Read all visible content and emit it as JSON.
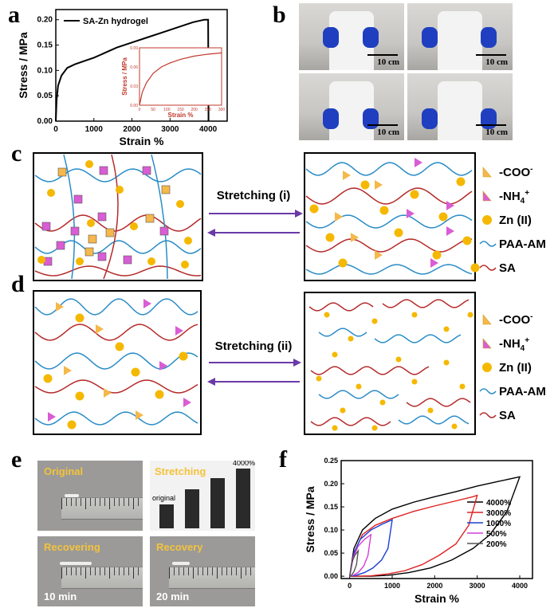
{
  "panels": {
    "a": "a",
    "b": "b",
    "c": "c",
    "d": "d",
    "e": "e",
    "f": "f"
  },
  "panel_b": {
    "scale_labels": [
      "10 cm",
      "10 cm",
      "10 cm",
      "10 cm"
    ]
  },
  "scheme": {
    "c_label": "Stretching (i)",
    "d_label": "Stretching (ii)",
    "legend": [
      {
        "symbol": "triangle",
        "color": "#f5b84a",
        "label": "-COO",
        "sup": "-"
      },
      {
        "symbol": "triangle",
        "color": "#d95dd4",
        "label": "-NH",
        "sub": "4",
        "sup": "+"
      },
      {
        "symbol": "circle",
        "color": "#f5b800",
        "label": "Zn (II)"
      },
      {
        "symbol": "line",
        "color": "#2a8cc6",
        "label": "PAA-AM"
      },
      {
        "symbol": "line",
        "color": "#b52a2a",
        "label": "SA"
      }
    ]
  },
  "panel_e": {
    "original": "Original",
    "stretching": "Stretching",
    "recovering": "Recovering",
    "recovery": "Recovery",
    "t1": "10 min",
    "t2": "20 min",
    "tube_original": "original",
    "tube_max": "4000%"
  },
  "chart_data": [
    {
      "type": "line",
      "panel": "a",
      "xlabel": "Strain %",
      "ylabel": "Stress / MPa",
      "xlim": [
        0,
        4500
      ],
      "ylim": [
        0,
        0.22
      ],
      "xticks": [
        0,
        1000,
        2000,
        3000,
        4000
      ],
      "yticks": [
        0.0,
        0.05,
        0.1,
        0.15,
        0.2
      ],
      "legend": "top-left",
      "series": [
        {
          "name": "SA-Zn hydrogel",
          "color": "#000000",
          "x": [
            0,
            20,
            60,
            150,
            300,
            500,
            800,
            1000,
            1300,
            1600,
            2000,
            2400,
            2800,
            3200,
            3600,
            3900,
            4000,
            4010
          ],
          "y": [
            0,
            0.04,
            0.07,
            0.09,
            0.105,
            0.112,
            0.12,
            0.125,
            0.135,
            0.145,
            0.155,
            0.165,
            0.175,
            0.185,
            0.195,
            0.2,
            0.2,
            0.0
          ]
        }
      ],
      "inset": {
        "xlabel": "Strain %",
        "ylabel": "Stress / MPa",
        "xlim": [
          0,
          300
        ],
        "ylim": [
          0,
          0.09
        ],
        "xticks": [
          0,
          50,
          100,
          150,
          200,
          250,
          300
        ],
        "yticks": [
          0.0,
          0.03,
          0.06,
          0.09
        ],
        "color": "#c0392b",
        "x": [
          0,
          10,
          25,
          50,
          80,
          110,
          150,
          200,
          250,
          300
        ],
        "y": [
          0,
          0.02,
          0.035,
          0.05,
          0.06,
          0.066,
          0.072,
          0.077,
          0.08,
          0.082
        ]
      }
    },
    {
      "type": "line",
      "panel": "f",
      "xlabel": "Strain %",
      "ylabel": "Stress / MPa",
      "xlim": [
        -200,
        4300
      ],
      "ylim": [
        -0.005,
        0.25
      ],
      "xticks": [
        0,
        1000,
        2000,
        3000,
        4000
      ],
      "yticks": [
        0.0,
        0.05,
        0.1,
        0.15,
        0.2,
        0.25
      ],
      "legend": "right",
      "series": [
        {
          "name": "4000%",
          "color": "#000000",
          "load_x": [
            0,
            100,
            300,
            600,
            1000,
            1500,
            2000,
            2500,
            3000,
            3500,
            4000
          ],
          "load_y": [
            0,
            0.06,
            0.1,
            0.125,
            0.145,
            0.16,
            0.172,
            0.183,
            0.195,
            0.205,
            0.215
          ],
          "unload_x": [
            4000,
            3700,
            3300,
            2900,
            2400,
            1900,
            1400,
            900,
            500,
            200,
            0
          ],
          "unload_y": [
            0.215,
            0.14,
            0.09,
            0.06,
            0.035,
            0.018,
            0.008,
            0.002,
            0.0,
            0.0,
            0.0
          ]
        },
        {
          "name": "3000%",
          "color": "#e02020",
          "load_x": [
            0,
            100,
            300,
            600,
            1000,
            1500,
            2000,
            2500,
            2900,
            3000
          ],
          "load_y": [
            0,
            0.05,
            0.09,
            0.11,
            0.125,
            0.14,
            0.152,
            0.163,
            0.172,
            0.175
          ],
          "unload_x": [
            3000,
            2800,
            2500,
            2100,
            1700,
            1300,
            900,
            500,
            200,
            0
          ],
          "unload_y": [
            0.175,
            0.11,
            0.07,
            0.045,
            0.025,
            0.012,
            0.005,
            0.001,
            0.0,
            0.0
          ]
        },
        {
          "name": "1000%",
          "color": "#1a3fd6",
          "load_x": [
            0,
            100,
            250,
            500,
            750,
            1000
          ],
          "load_y": [
            0,
            0.05,
            0.08,
            0.1,
            0.112,
            0.122
          ],
          "unload_x": [
            1000,
            900,
            750,
            550,
            350,
            150,
            0
          ],
          "unload_y": [
            0.122,
            0.06,
            0.035,
            0.018,
            0.008,
            0.002,
            0.0
          ]
        },
        {
          "name": "500%",
          "color": "#d63cd6",
          "load_x": [
            0,
            80,
            200,
            350,
            500
          ],
          "load_y": [
            0,
            0.04,
            0.065,
            0.08,
            0.09
          ],
          "unload_x": [
            500,
            430,
            330,
            200,
            80,
            0
          ],
          "unload_y": [
            0.09,
            0.045,
            0.022,
            0.008,
            0.002,
            0.0
          ]
        },
        {
          "name": "200%",
          "color": "#555555",
          "load_x": [
            0,
            50,
            120,
            200
          ],
          "load_y": [
            0,
            0.03,
            0.045,
            0.055
          ],
          "unload_x": [
            200,
            160,
            100,
            40,
            0
          ],
          "unload_y": [
            0.055,
            0.025,
            0.01,
            0.002,
            0.0
          ]
        }
      ]
    }
  ]
}
